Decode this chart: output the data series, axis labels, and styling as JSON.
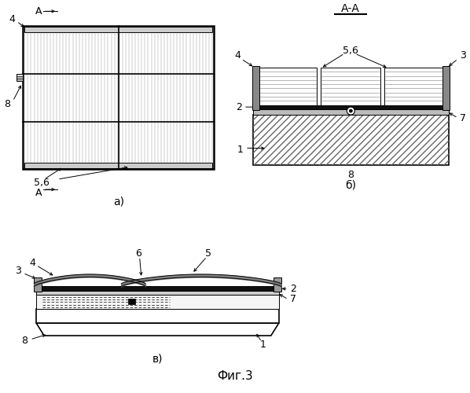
{
  "bg_color": "#ffffff",
  "lc": "#000000",
  "fig_label": "Фиг.3",
  "sub_a": "а)",
  "sub_b": "б)",
  "sub_v": "в)",
  "section_label": "А-А",
  "stripe_gray": "#999999",
  "hatch_gray": "#aaaaaa"
}
